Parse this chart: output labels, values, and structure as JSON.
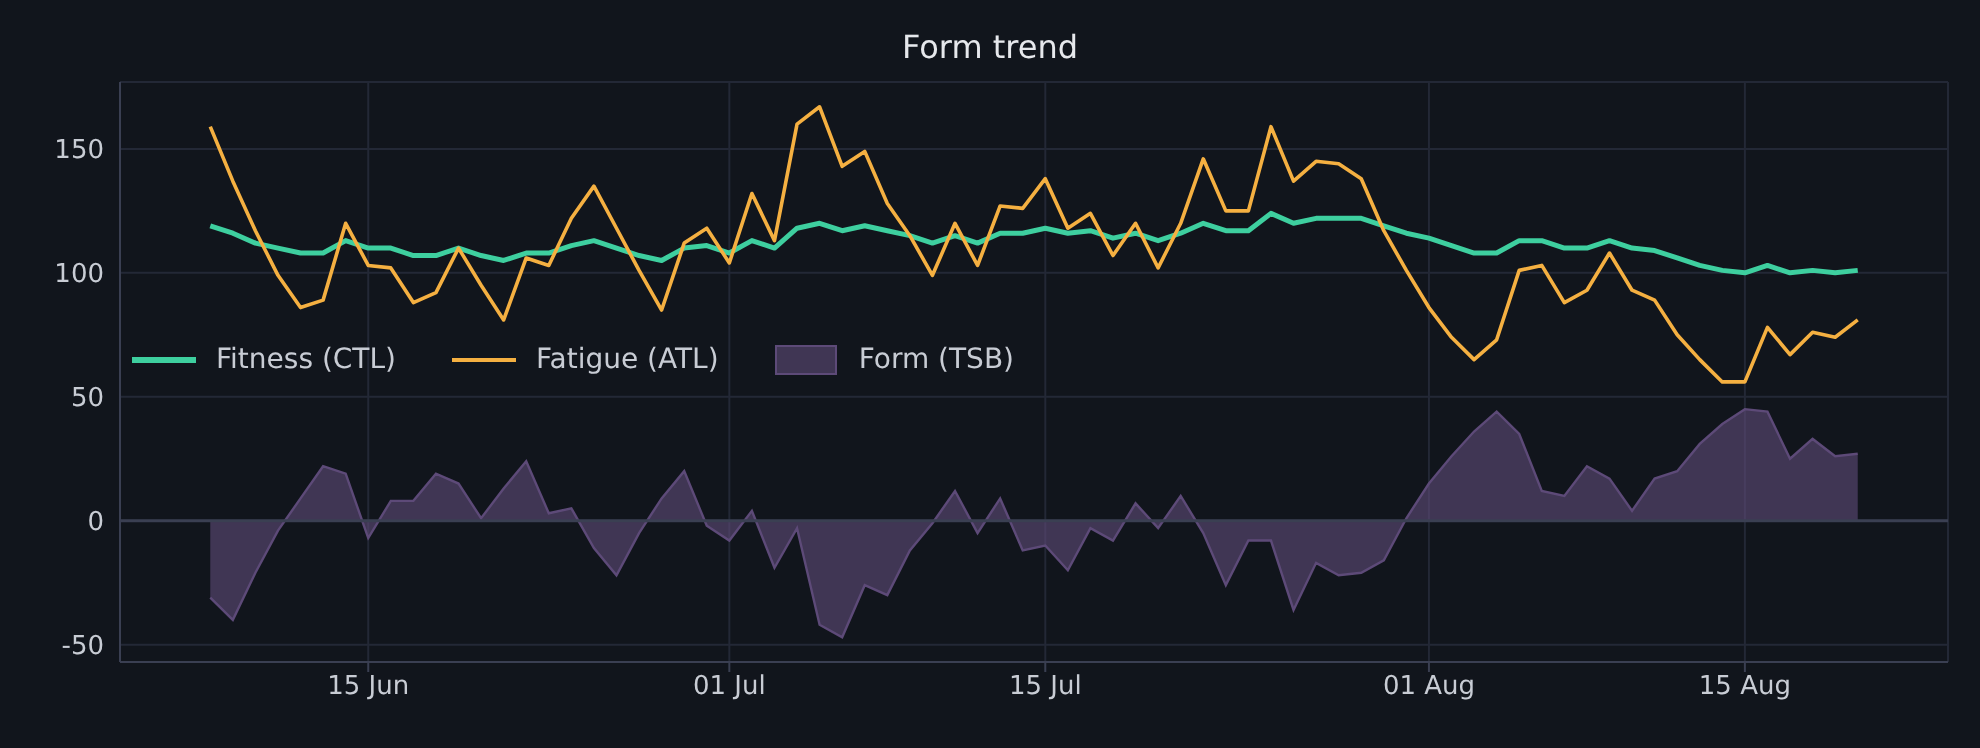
{
  "chart_data": {
    "type": "line",
    "title": "Form trend",
    "x": [
      "--06-08",
      "--06-09",
      "--06-10",
      "--06-11",
      "--06-12",
      "--06-13",
      "--06-14",
      "--06-15",
      "--06-16",
      "--06-17",
      "--06-18",
      "--06-19",
      "--06-20",
      "--06-21",
      "--06-22",
      "--06-23",
      "--06-24",
      "--06-25",
      "--06-26",
      "--06-27",
      "--06-28",
      "--06-29",
      "--06-30",
      "--07-01",
      "--07-02",
      "--07-03",
      "--07-04",
      "--07-05",
      "--07-06",
      "--07-07",
      "--07-08",
      "--07-09",
      "--07-10",
      "--07-11",
      "--07-12",
      "--07-13",
      "--07-14",
      "--07-15",
      "--07-16",
      "--07-17",
      "--07-18",
      "--07-19",
      "--07-20",
      "--07-21",
      "--07-22",
      "--07-23",
      "--07-24",
      "--07-25",
      "--07-26",
      "--07-27",
      "--07-28",
      "--07-29",
      "--07-30",
      "--07-31",
      "--08-01",
      "--08-02",
      "--08-03",
      "--08-04",
      "--08-05",
      "--08-06",
      "--08-07",
      "--08-08",
      "--08-09",
      "--08-10",
      "--08-11",
      "--08-12",
      "--08-13",
      "--08-14",
      "--08-15",
      "--08-16",
      "--08-17",
      "--08-18",
      "--08-19",
      "--08-20"
    ],
    "series": [
      {
        "name": "Fitness (CTL)",
        "color": "#3ecf9f",
        "values": [
          119,
          116,
          112,
          110,
          108,
          108,
          113,
          110,
          110,
          107,
          107,
          110,
          107,
          105,
          108,
          108,
          111,
          113,
          110,
          107,
          105,
          110,
          111,
          108,
          113,
          110,
          118,
          120,
          117,
          119,
          117,
          115,
          112,
          115,
          112,
          116,
          116,
          118,
          116,
          117,
          114,
          116,
          113,
          116,
          120,
          117,
          117,
          124,
          120,
          122,
          122,
          122,
          119,
          116,
          114,
          111,
          108,
          108,
          113,
          113,
          110,
          110,
          113,
          110,
          109,
          106,
          103,
          101,
          100,
          103,
          100,
          101,
          100,
          101
        ]
      },
      {
        "name": "Fatigue (ATL)",
        "color": "#f5b041",
        "values": [
          159,
          137,
          117,
          99,
          86,
          89,
          120,
          103,
          102,
          88,
          92,
          110,
          95,
          81,
          106,
          103,
          122,
          135,
          118,
          101,
          85,
          112,
          118,
          104,
          132,
          113,
          160,
          167,
          143,
          149,
          128,
          115,
          99,
          120,
          103,
          127,
          126,
          138,
          118,
          124,
          107,
          120,
          102,
          120,
          146,
          125,
          125,
          159,
          137,
          145,
          144,
          138,
          117,
          101,
          86,
          74,
          65,
          73,
          101,
          103,
          88,
          93,
          108,
          93,
          89,
          75,
          65,
          56,
          56,
          78,
          67,
          76,
          74,
          81
        ]
      },
      {
        "name": "Form (TSB)",
        "type": "area",
        "color": "#5d4a78",
        "values": [
          -31,
          -40,
          -21,
          -4,
          9,
          22,
          19,
          -7,
          8,
          8,
          19,
          15,
          1,
          13,
          24,
          3,
          5,
          -11,
          -22,
          -5,
          9,
          20,
          -2,
          -8,
          4,
          -19,
          -3,
          -42,
          -47,
          -26,
          -30,
          -12,
          -1,
          12,
          -5,
          9,
          -12,
          -10,
          -20,
          -3,
          -8,
          7,
          -3,
          10,
          -5,
          -26,
          -8,
          -8,
          -36,
          -17,
          -22,
          -21,
          -16,
          1,
          15,
          26,
          36,
          44,
          35,
          12,
          10,
          22,
          17,
          4,
          17,
          20,
          31,
          39,
          45,
          44,
          25,
          33,
          26,
          27
        ]
      }
    ],
    "xlim": [
      "--06-04",
      "--08-24"
    ],
    "xticks": [
      {
        "value": "--06-15",
        "label": "15 Jun"
      },
      {
        "value": "--07-01",
        "label": "01 Jul"
      },
      {
        "value": "--07-15",
        "label": "15 Jul"
      },
      {
        "value": "--08-01",
        "label": "01 Aug"
      },
      {
        "value": "--08-15",
        "label": "15 Aug"
      }
    ],
    "ylim": [
      -57,
      177
    ],
    "yticks": [
      -50,
      0,
      50,
      100,
      150
    ],
    "ref_lines": [
      {
        "axis": "y",
        "value": 0,
        "color": "#3a3f52"
      }
    ],
    "grid": true,
    "legend": "left"
  }
}
